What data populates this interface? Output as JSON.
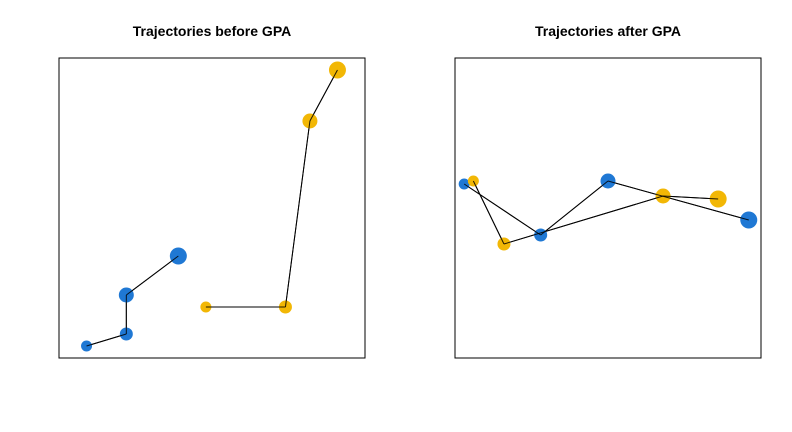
{
  "chart_data": [
    {
      "type": "scatter",
      "title": "Trajectories before GPA",
      "xlabel": "",
      "ylabel": "",
      "xlim": [
        0,
        100
      ],
      "ylim": [
        0,
        100
      ],
      "axes_visible": false,
      "grid": false,
      "connected": true,
      "point_size_increases_along_trajectory": true,
      "series": [
        {
          "color": "#1f78d4",
          "x": [
            9,
            22,
            22,
            39
          ],
          "y": [
            4,
            8,
            21,
            34
          ]
        },
        {
          "color": "#f2b705",
          "x": [
            48,
            74,
            82,
            91
          ],
          "y": [
            17,
            17,
            79,
            96
          ]
        }
      ]
    },
    {
      "type": "scatter",
      "title": "Trajectories after GPA",
      "xlabel": "",
      "ylabel": "",
      "xlim": [
        0,
        100
      ],
      "ylim": [
        0,
        100
      ],
      "axes_visible": false,
      "grid": false,
      "connected": true,
      "point_size_increases_along_trajectory": true,
      "series": [
        {
          "color": "#1f78d4",
          "x": [
            3,
            28,
            50,
            96
          ],
          "y": [
            58,
            41,
            59,
            46
          ]
        },
        {
          "color": "#f2b705",
          "x": [
            6,
            16,
            68,
            86
          ],
          "y": [
            59,
            38,
            54,
            53
          ]
        }
      ]
    }
  ]
}
